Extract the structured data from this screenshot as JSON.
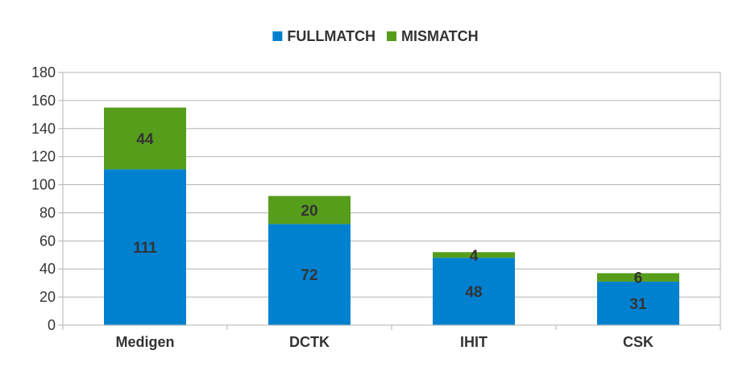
{
  "chart_data": {
    "type": "bar",
    "stacked": true,
    "categories": [
      "Medigen",
      "DCTK",
      "IHIT",
      "CSK"
    ],
    "series": [
      {
        "name": "FULLMATCH",
        "color": "#0081D0",
        "values": [
          111,
          72,
          48,
          31
        ]
      },
      {
        "name": "MISMATCH",
        "color": "#579D1C",
        "values": [
          44,
          20,
          4,
          6
        ]
      }
    ],
    "ylim": [
      0,
      180
    ],
    "yticks": [
      0,
      20,
      40,
      60,
      80,
      100,
      120,
      140,
      160,
      180
    ],
    "grid": true,
    "legend_position": "top-center",
    "data_labels": true
  }
}
